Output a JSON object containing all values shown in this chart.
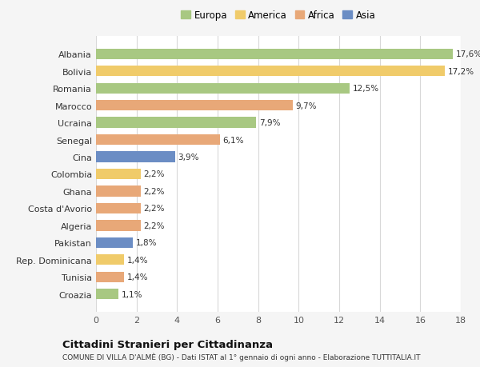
{
  "countries": [
    "Albania",
    "Bolivia",
    "Romania",
    "Marocco",
    "Ucraina",
    "Senegal",
    "Cina",
    "Colombia",
    "Ghana",
    "Costa d'Avorio",
    "Algeria",
    "Pakistan",
    "Rep. Dominicana",
    "Tunisia",
    "Croazia"
  ],
  "values": [
    17.6,
    17.2,
    12.5,
    9.7,
    7.9,
    6.1,
    3.9,
    2.2,
    2.2,
    2.2,
    2.2,
    1.8,
    1.4,
    1.4,
    1.1
  ],
  "labels": [
    "17,6%",
    "17,2%",
    "12,5%",
    "9,7%",
    "7,9%",
    "6,1%",
    "3,9%",
    "2,2%",
    "2,2%",
    "2,2%",
    "2,2%",
    "1,8%",
    "1,4%",
    "1,4%",
    "1,1%"
  ],
  "continents": [
    "Europa",
    "America",
    "Europa",
    "Africa",
    "Europa",
    "Africa",
    "Asia",
    "America",
    "Africa",
    "Africa",
    "Africa",
    "Asia",
    "America",
    "Africa",
    "Europa"
  ],
  "colors": {
    "Europa": "#a8c882",
    "America": "#f0cb6a",
    "Africa": "#e8a878",
    "Asia": "#6b8dc4"
  },
  "legend_order": [
    "Europa",
    "America",
    "Africa",
    "Asia"
  ],
  "title": "Cittadini Stranieri per Cittadinanza",
  "subtitle": "COMUNE DI VILLA D'ALMÈ (BG) - Dati ISTAT al 1° gennaio di ogni anno - Elaborazione TUTTITALIA.IT",
  "xlim": [
    0,
    18
  ],
  "xticks": [
    0,
    2,
    4,
    6,
    8,
    10,
    12,
    14,
    16,
    18
  ],
  "bg_color": "#f5f5f5",
  "plot_bg_color": "#ffffff",
  "grid_color": "#d8d8d8"
}
